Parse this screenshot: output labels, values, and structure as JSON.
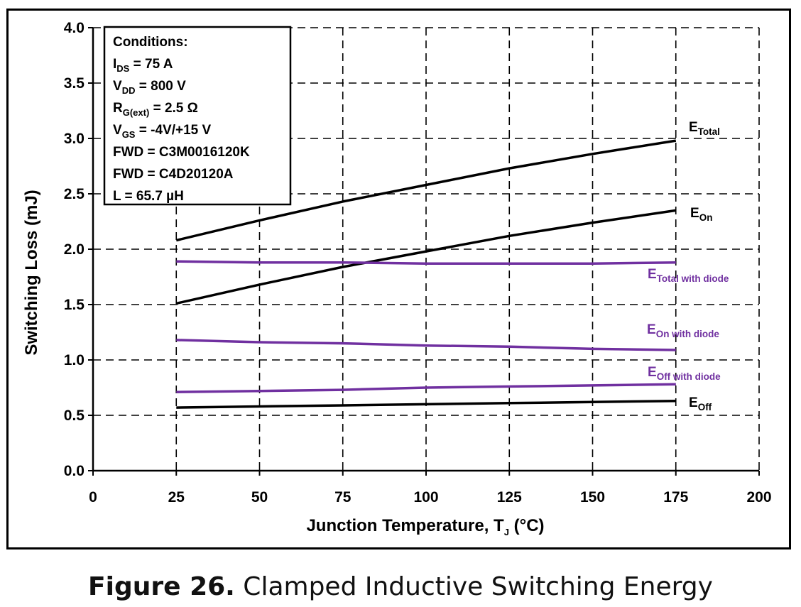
{
  "chart_data": {
    "type": "line",
    "xlabel_main": "Junction Temperature, T",
    "xlabel_sub": "J",
    "xlabel_tail": " (°C)",
    "ylabel": "Switching Loss (mJ)",
    "xlim": [
      0,
      200
    ],
    "ylim": [
      0,
      4.0
    ],
    "x_ticks": [
      "0",
      "25",
      "50",
      "75",
      "100",
      "125",
      "150",
      "175",
      "200"
    ],
    "y_ticks": [
      "0.0",
      "0.5",
      "1.0",
      "1.5",
      "2.0",
      "2.5",
      "3.0",
      "3.5",
      "4.0"
    ],
    "grid": true,
    "colors": {
      "black": "#000000",
      "purple": "#7030a0"
    },
    "conditions": {
      "title": "Conditions:",
      "lines": [
        {
          "main": "I",
          "sub": "DS",
          "tail": " = 75 A",
          "color": "#000000"
        },
        {
          "main": "V",
          "sub": "DD",
          "tail": " = 800 V",
          "color": "#000000"
        },
        {
          "main": "R",
          "sub": "G(ext)",
          "tail": " = 2.5 Ω",
          "color": "#000000"
        },
        {
          "main": "V",
          "sub": "GS",
          "tail": " = -4V/+15 V",
          "color": "#000000"
        },
        {
          "main": "FWD = C3M0016120K",
          "sub": "",
          "tail": "",
          "color": "#000000"
        },
        {
          "main": "FWD = C4D20120A",
          "sub": "",
          "tail": "",
          "color": "#7030a0"
        },
        {
          "main": "L = 65.7 µH",
          "sub": "",
          "tail": "",
          "color": "#000000"
        }
      ]
    },
    "series": [
      {
        "main": "E",
        "sub": "Total",
        "color": "#000000",
        "x": [
          25,
          50,
          75,
          100,
          125,
          150,
          175
        ],
        "values": [
          2.08,
          2.26,
          2.43,
          2.58,
          2.73,
          2.86,
          2.98
        ]
      },
      {
        "main": "E",
        "sub": "On",
        "color": "#000000",
        "x": [
          25,
          50,
          75,
          100,
          125,
          150,
          175
        ],
        "values": [
          1.51,
          1.68,
          1.84,
          1.98,
          2.12,
          2.24,
          2.35
        ]
      },
      {
        "main": "E",
        "sub": "Total with diode",
        "color": "#7030a0",
        "x": [
          25,
          50,
          75,
          100,
          125,
          150,
          175
        ],
        "values": [
          1.89,
          1.88,
          1.88,
          1.87,
          1.87,
          1.87,
          1.88
        ]
      },
      {
        "main": "E",
        "sub": "On with diode",
        "color": "#7030a0",
        "x": [
          25,
          50,
          75,
          100,
          125,
          150,
          175
        ],
        "values": [
          1.18,
          1.16,
          1.15,
          1.13,
          1.12,
          1.1,
          1.09
        ]
      },
      {
        "main": "E",
        "sub": "Off with diode",
        "color": "#7030a0",
        "x": [
          25,
          50,
          75,
          100,
          125,
          150,
          175
        ],
        "values": [
          0.71,
          0.72,
          0.73,
          0.75,
          0.76,
          0.77,
          0.78
        ]
      },
      {
        "main": "E",
        "sub": "Off",
        "color": "#000000",
        "x": [
          25,
          50,
          75,
          100,
          125,
          150,
          175
        ],
        "values": [
          0.57,
          0.58,
          0.59,
          0.6,
          0.61,
          0.62,
          0.63
        ]
      }
    ]
  },
  "caption": {
    "number": "Figure 26.",
    "text": " Clamped Inductive Switching Energy"
  }
}
